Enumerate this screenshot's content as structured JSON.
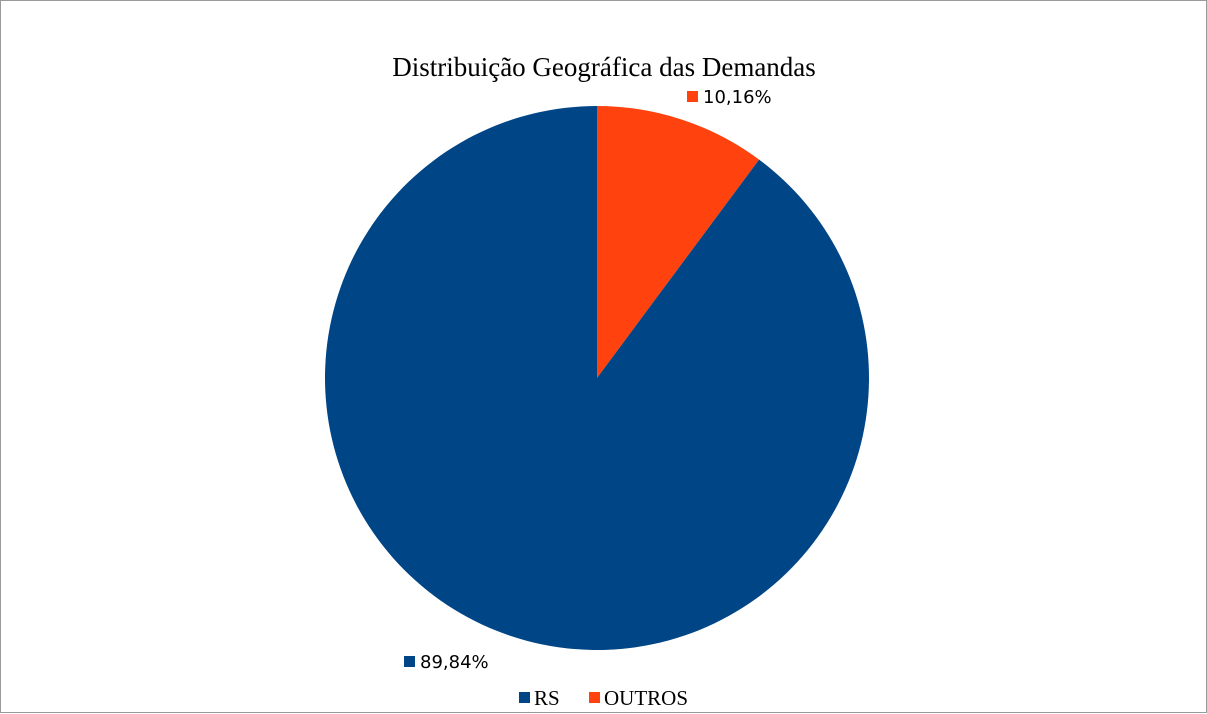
{
  "chart_data": {
    "type": "pie",
    "title": "Distribuição Geográfica das Demandas",
    "categories": [
      "RS",
      "OUTROS"
    ],
    "values": [
      89.84,
      10.16
    ],
    "data_labels": [
      "89,84%",
      "10,16%"
    ],
    "colors": [
      "#004586",
      "#ff420e"
    ],
    "legend": {
      "placement": "bottom",
      "entries": [
        "RS",
        "OUTROS"
      ]
    }
  }
}
